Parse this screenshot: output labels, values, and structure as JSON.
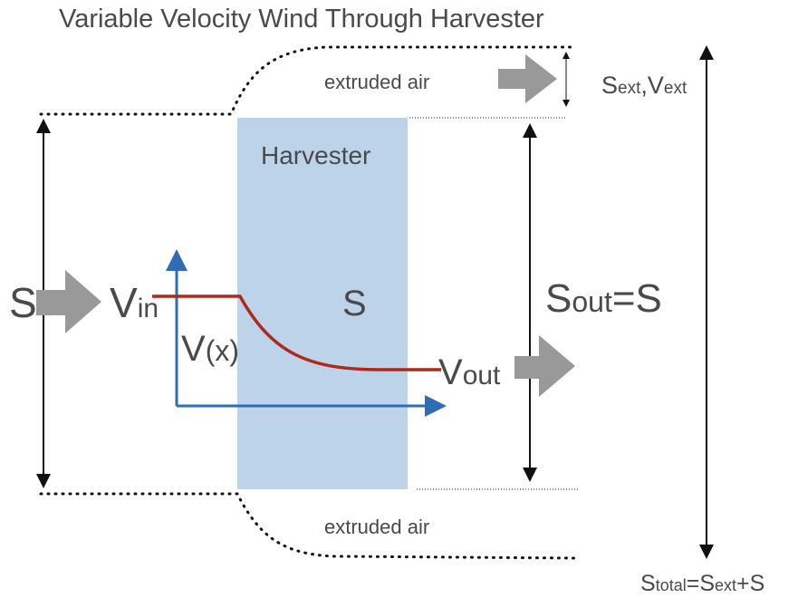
{
  "title": "Variable Velocity Wind Through Harvester",
  "harvester": {
    "label": "Harvester",
    "area": "S"
  },
  "extruded_top": "extruded air",
  "extruded_bottom": "extruded air",
  "inlet": {
    "area": "S",
    "velocity": {
      "base": "V",
      "sub": "in"
    }
  },
  "curve_label": {
    "base": "V",
    "sub": "(x)"
  },
  "outlet": {
    "velocity": {
      "base": "V",
      "sub": "out"
    },
    "area": {
      "base": "S",
      "sub": "out",
      "rest": "=S"
    }
  },
  "extruded_flow": {
    "area": "S",
    "area_sub": "ext",
    "sep": ",V",
    "velocity_sub": "ext"
  },
  "total": {
    "base": "S",
    "sub": "total",
    "eq": "=S",
    "sub2": "ext",
    "rest": "+S"
  }
}
